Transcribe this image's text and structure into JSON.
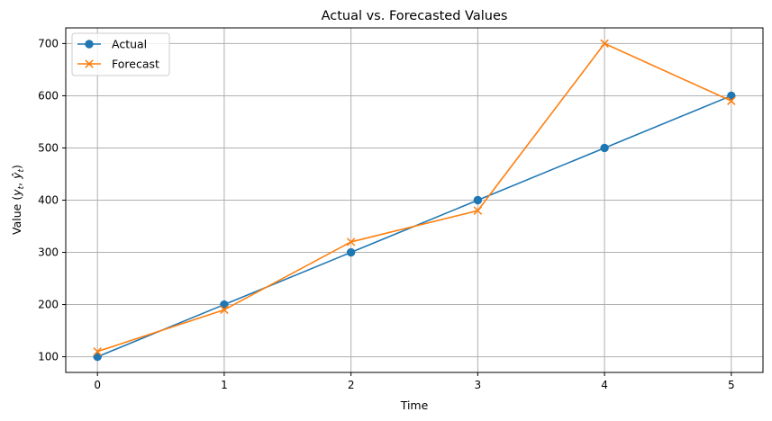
{
  "chart_data": {
    "type": "line",
    "title": "Actual vs. Forecasted Values",
    "xlabel": "Time",
    "ylabel": "Value (y_t, ŷ_t)",
    "x": [
      0,
      1,
      2,
      3,
      4,
      5
    ],
    "xticks": [
      0,
      1,
      2,
      3,
      4,
      5
    ],
    "yticks": [
      100,
      200,
      300,
      400,
      500,
      600,
      700
    ],
    "xlim": [
      -0.25,
      5.25
    ],
    "ylim": [
      70,
      730
    ],
    "grid": true,
    "legend_position": "upper-left",
    "series": [
      {
        "name": "Actual",
        "values": [
          100,
          200,
          300,
          400,
          500,
          600
        ],
        "color": "#1f77b4",
        "marker": "circle"
      },
      {
        "name": "Forecast",
        "values": [
          110,
          190,
          320,
          380,
          700,
          590
        ],
        "color": "#ff7f0e",
        "marker": "x"
      }
    ]
  }
}
